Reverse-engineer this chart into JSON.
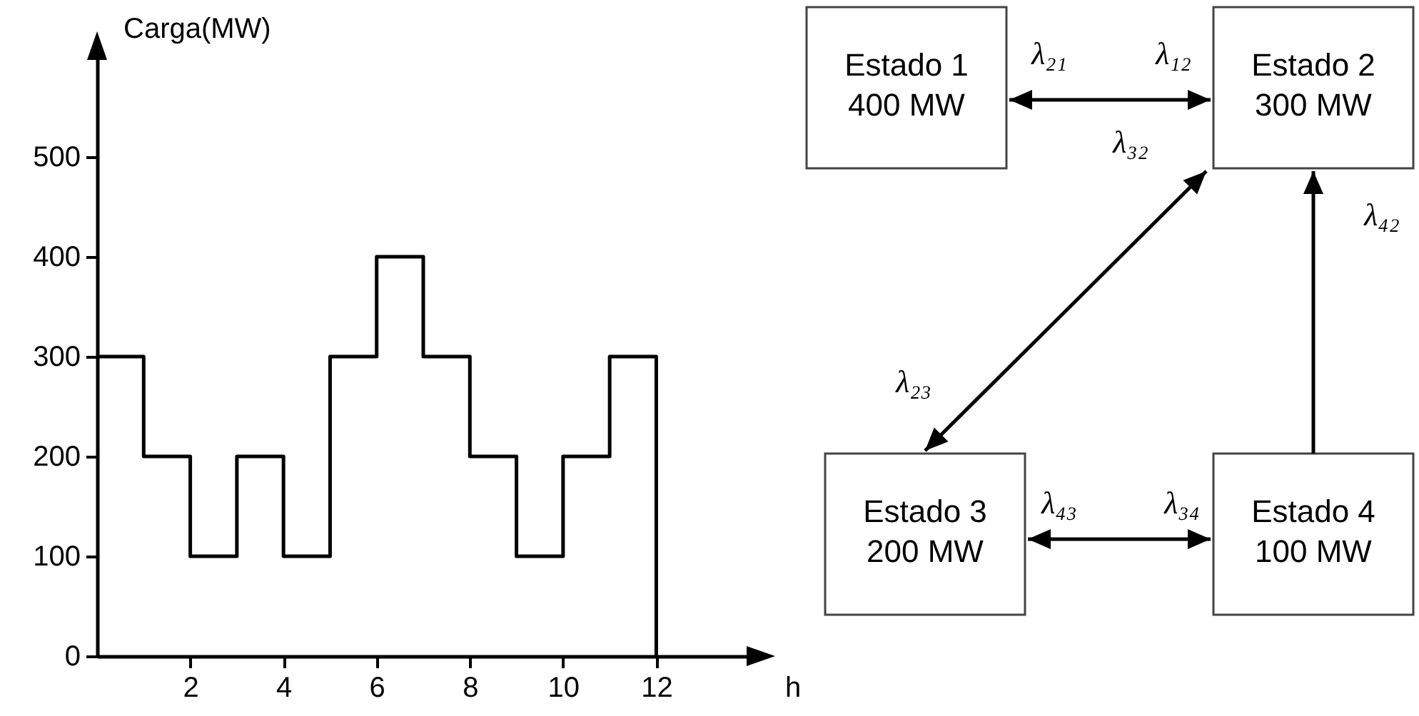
{
  "chart_data": [
    {
      "type": "step",
      "xlabel": "h",
      "ylabel": "Carga(MW)",
      "color": "#000000",
      "x": [
        0,
        1,
        2,
        3,
        4,
        5,
        6,
        7,
        8,
        9,
        10,
        11,
        12,
        12
      ],
      "values": [
        300,
        200,
        100,
        200,
        100,
        300,
        400,
        300,
        200,
        100,
        200,
        300,
        300,
        0
      ],
      "xlim": [
        0,
        14
      ],
      "xticks": [
        2,
        4,
        6,
        8,
        10,
        12
      ],
      "ylim": [
        0,
        600
      ],
      "yticks": [
        0,
        100,
        200,
        300,
        400,
        500
      ]
    },
    {
      "type": "other",
      "annotations": [
        "Estado 1",
        "400 MW",
        "Estado 2",
        "300 MW",
        "Estado 3",
        "200 MW",
        "Estado 4",
        "100 MW",
        "λ₂₁",
        "λ₁₂",
        "λ₃₂",
        "λ₄₂",
        "λ₂₃",
        "λ₄₃",
        "λ₃₄"
      ]
    }
  ]
}
